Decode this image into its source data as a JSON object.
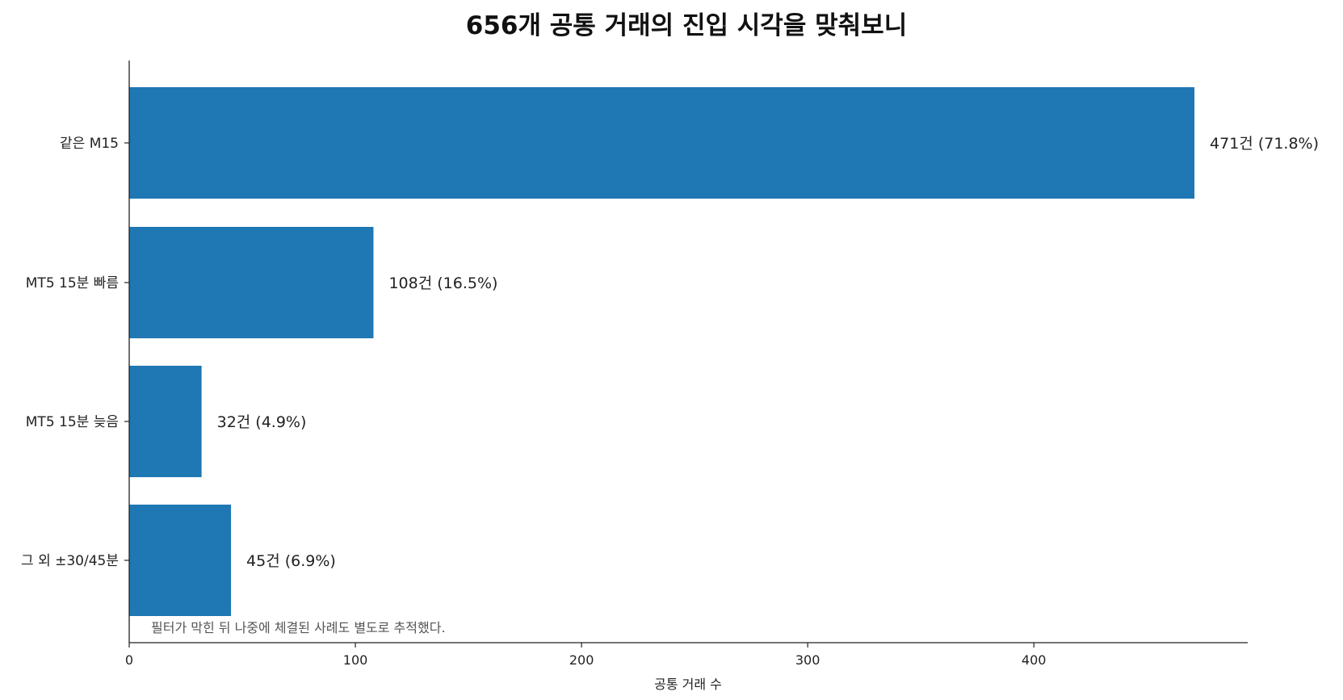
{
  "chart_data": {
    "type": "bar",
    "orientation": "horizontal",
    "title": "656개 공통 거래의 진입 시각을 맞춰보니",
    "xlabel": "공통 거래 수",
    "ylabel": "",
    "categories": [
      "같은 M15",
      "MT5 15분 빠름",
      "MT5 15분 늦음",
      "그 외 ±30/45분"
    ],
    "values": [
      471,
      108,
      32,
      45
    ],
    "value_labels": [
      "471건 (71.8%)",
      "108건 (16.5%)",
      "32건 (4.9%)",
      "45건 (6.9%)"
    ],
    "xticks": [
      0,
      100,
      200,
      300,
      400
    ],
    "xtick_labels": [
      "0",
      "100",
      "200",
      "300",
      "400"
    ],
    "xlim": [
      0,
      494.55
    ],
    "grid": false,
    "bar_color": "#1f77b4",
    "annotation": "필터가 막힌 뒤 나중에 체결된 사례도 별도로 추적했다."
  }
}
